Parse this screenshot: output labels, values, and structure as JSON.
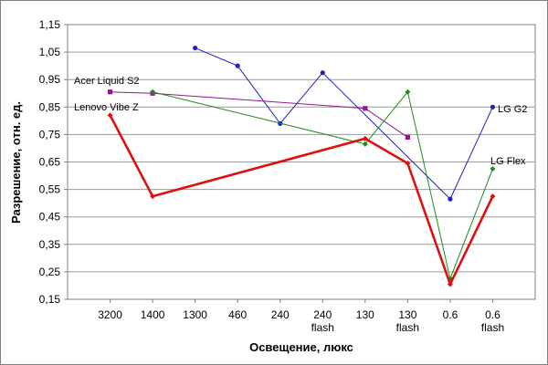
{
  "chart_data": {
    "type": "line",
    "title": "",
    "xlabel": "Освещение, люкс",
    "ylabel": "Разрешение, отн. ед.",
    "ylim": [
      0.15,
      1.15
    ],
    "yticks": [
      "0,15",
      "0,25",
      "0,35",
      "0,45",
      "0,55",
      "0,65",
      "0,75",
      "0,85",
      "0,95",
      "1,05",
      "1,15"
    ],
    "grid": "horizontal",
    "categories": [
      [
        "3200"
      ],
      [
        "1400"
      ],
      [
        "1300"
      ],
      [
        "460"
      ],
      [
        "240"
      ],
      [
        "240",
        "flash"
      ],
      [
        "130"
      ],
      [
        "130",
        "flash"
      ],
      [
        "0.6"
      ],
      [
        "0.6",
        "flash"
      ]
    ],
    "series": [
      {
        "name": "LG G2",
        "color": "#2020c0",
        "marker": "circle",
        "values": [
          null,
          null,
          1.065,
          1.0,
          0.79,
          0.975,
          null,
          null,
          0.515,
          0.85
        ]
      },
      {
        "name": "Acer Liquid S2",
        "color": "#8e1a8e",
        "marker": "square",
        "values": [
          0.905,
          0.9,
          null,
          null,
          null,
          null,
          0.845,
          0.74,
          null,
          null
        ]
      },
      {
        "name": "LG Flex",
        "color": "#1e8c1e",
        "marker": "diamond",
        "values": [
          null,
          0.905,
          null,
          null,
          null,
          null,
          0.715,
          0.905,
          0.225,
          0.625
        ]
      },
      {
        "name": "Lenovo Vibe Z",
        "color": "#e01010",
        "marker": "diamond",
        "values": [
          0.82,
          0.525,
          null,
          null,
          null,
          null,
          0.735,
          0.645,
          0.205,
          0.525
        ]
      }
    ]
  }
}
